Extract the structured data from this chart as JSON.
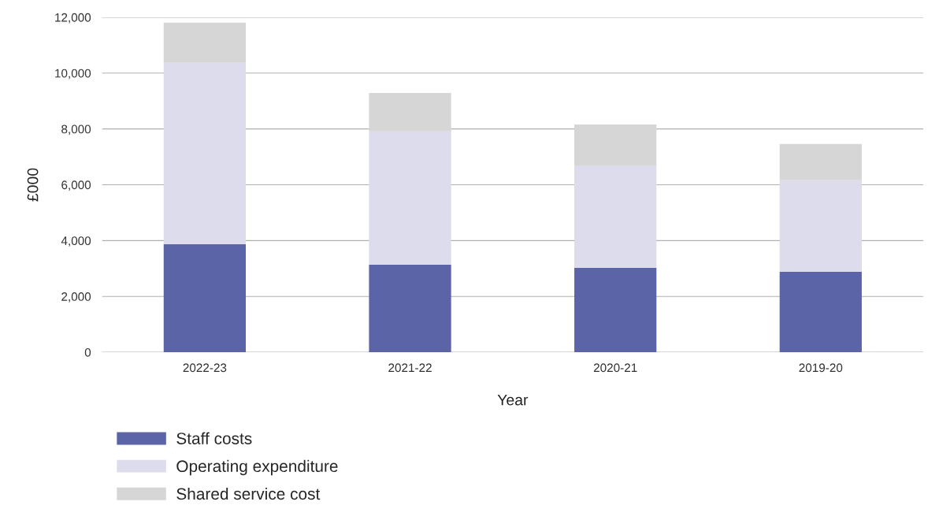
{
  "chart_data": {
    "type": "bar",
    "stacked": true,
    "xlabel": "Year",
    "ylabel": "£000",
    "categories": [
      "2022-23",
      "2021-22",
      "2020-21",
      "2019-20"
    ],
    "series": [
      {
        "name": "Staff costs",
        "color": "#5b64a6",
        "values": [
          3870,
          3140,
          3020,
          2880
        ]
      },
      {
        "name": "Operating expenditure",
        "color": "#dcdcec",
        "values": [
          6500,
          4770,
          3670,
          3280
        ]
      },
      {
        "name": "Shared service cost",
        "color": "#d6d6d6",
        "values": [
          1440,
          1380,
          1470,
          1300
        ]
      }
    ],
    "ylim": [
      0,
      12000
    ],
    "yticks": [
      {
        "value": 0,
        "label": "0"
      },
      {
        "value": 2000,
        "label": "2,000"
      },
      {
        "value": 4000,
        "label": "4,000"
      },
      {
        "value": 6000,
        "label": "6,000"
      },
      {
        "value": 8000,
        "label": "8,000"
      },
      {
        "value": 10000,
        "label": "10,000"
      },
      {
        "value": 12000,
        "label": "12,000"
      }
    ],
    "grid": "y",
    "legend": "bottom"
  }
}
